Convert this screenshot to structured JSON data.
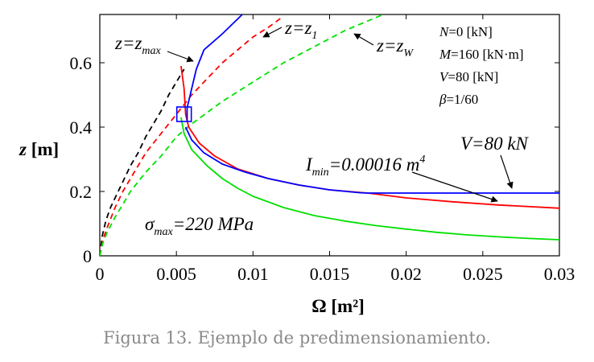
{
  "caption": "Figura 13. Ejemplo de predimensionamiento.",
  "chart_data": {
    "type": "line",
    "title": "",
    "xlabel": "Ω [m²]",
    "ylabel": "z [m]",
    "xlim": [
      0,
      0.03
    ],
    "ylim": [
      0,
      0.75
    ],
    "x_ticks": [
      0,
      0.005,
      0.01,
      0.015,
      0.02,
      0.025,
      0.03
    ],
    "x_tick_labels": [
      "0",
      "0.005",
      "0.01",
      "0.015",
      "0.02",
      "0.025",
      "0.03"
    ],
    "y_ticks": [
      0,
      0.2,
      0.4,
      0.6
    ],
    "y_tick_labels": [
      "0",
      "0.2",
      "0.4",
      "0.6"
    ],
    "grid": false,
    "series": [
      {
        "name": "z=zmax",
        "color": "#000000",
        "dash": true,
        "points": [
          [
            0.0,
            0.0
          ],
          [
            0.00015,
            0.06
          ],
          [
            0.0004,
            0.11
          ],
          [
            0.0007,
            0.15
          ],
          [
            0.001,
            0.18
          ],
          [
            0.0015,
            0.23
          ],
          [
            0.002,
            0.28
          ],
          [
            0.0025,
            0.32
          ],
          [
            0.003,
            0.37
          ],
          [
            0.0035,
            0.41
          ],
          [
            0.004,
            0.45
          ],
          [
            0.0045,
            0.5
          ],
          [
            0.005,
            0.54
          ],
          [
            0.0055,
            0.58
          ]
        ]
      },
      {
        "name": "z=z1",
        "color": "#ff0000",
        "dash": true,
        "points": [
          [
            0.0,
            0.0
          ],
          [
            0.0002,
            0.05
          ],
          [
            0.0005,
            0.09
          ],
          [
            0.001,
            0.15
          ],
          [
            0.0015,
            0.2
          ],
          [
            0.002,
            0.24
          ],
          [
            0.003,
            0.32
          ],
          [
            0.004,
            0.38
          ],
          [
            0.005,
            0.44
          ],
          [
            0.006,
            0.5
          ],
          [
            0.007,
            0.55
          ],
          [
            0.008,
            0.6
          ],
          [
            0.009,
            0.64
          ],
          [
            0.01,
            0.68
          ],
          [
            0.011,
            0.71
          ],
          [
            0.012,
            0.745
          ]
        ]
      },
      {
        "name": "z=zW",
        "color": "#00e000",
        "dash": true,
        "points": [
          [
            0.0,
            0.0
          ],
          [
            0.0002,
            0.04
          ],
          [
            0.0005,
            0.075
          ],
          [
            0.001,
            0.12
          ],
          [
            0.0015,
            0.16
          ],
          [
            0.002,
            0.2
          ],
          [
            0.003,
            0.26
          ],
          [
            0.004,
            0.31
          ],
          [
            0.005,
            0.37
          ],
          [
            0.006,
            0.41
          ],
          [
            0.008,
            0.48
          ],
          [
            0.01,
            0.54
          ],
          [
            0.012,
            0.6
          ],
          [
            0.014,
            0.65
          ],
          [
            0.016,
            0.7
          ],
          [
            0.0185,
            0.75
          ]
        ]
      },
      {
        "name": "σmax=220 MPa",
        "color": "#00e000",
        "dash": false,
        "points": [
          [
            0.0053,
            0.43
          ],
          [
            0.0055,
            0.38
          ],
          [
            0.006,
            0.33
          ],
          [
            0.007,
            0.28
          ],
          [
            0.008,
            0.24
          ],
          [
            0.009,
            0.21
          ],
          [
            0.01,
            0.185
          ],
          [
            0.012,
            0.15
          ],
          [
            0.014,
            0.125
          ],
          [
            0.016,
            0.108
          ],
          [
            0.018,
            0.094
          ],
          [
            0.02,
            0.083
          ],
          [
            0.022,
            0.073
          ],
          [
            0.024,
            0.065
          ],
          [
            0.026,
            0.059
          ],
          [
            0.028,
            0.054
          ],
          [
            0.03,
            0.05
          ]
        ]
      },
      {
        "name": "Imin=0.00016 m4",
        "color": "#ff0000",
        "dash": false,
        "points": [
          [
            0.0053,
            0.59
          ],
          [
            0.0055,
            0.52
          ],
          [
            0.0056,
            0.44
          ],
          [
            0.0058,
            0.4
          ],
          [
            0.0065,
            0.35
          ],
          [
            0.0075,
            0.31
          ],
          [
            0.009,
            0.27
          ],
          [
            0.011,
            0.24
          ],
          [
            0.013,
            0.22
          ],
          [
            0.015,
            0.205
          ],
          [
            0.0175,
            0.195
          ],
          [
            0.02,
            0.18
          ],
          [
            0.023,
            0.168
          ],
          [
            0.026,
            0.158
          ],
          [
            0.03,
            0.148
          ]
        ]
      },
      {
        "name": "V=80 kN",
        "color": "#0000ff",
        "dash": false,
        "points": [
          [
            0.0057,
            0.42
          ],
          [
            0.0057,
            0.46
          ],
          [
            0.006,
            0.52
          ],
          [
            0.0063,
            0.58
          ],
          [
            0.0068,
            0.64
          ],
          [
            0.008,
            0.69
          ],
          [
            0.0093,
            0.75
          ],
          [
            0.0056,
            0.4
          ],
          [
            0.006,
            0.36
          ],
          [
            0.0068,
            0.32
          ],
          [
            0.008,
            0.285
          ],
          [
            0.0095,
            0.26
          ],
          [
            0.011,
            0.24
          ],
          [
            0.013,
            0.22
          ],
          [
            0.015,
            0.205
          ],
          [
            0.017,
            0.196
          ],
          [
            0.0175,
            0.195
          ],
          [
            0.03,
            0.195
          ]
        ]
      }
    ],
    "marker": {
      "shape": "square",
      "color": "#0000ff",
      "x": 0.0055,
      "y": 0.44
    },
    "annotations": {
      "zmax": {
        "main": "z=z",
        "sub": "max"
      },
      "z1": {
        "main": "z=z",
        "sub": "1"
      },
      "zw": {
        "main": "z=z",
        "sub": "W"
      },
      "imin": {
        "pre": "I",
        "sub": "min",
        "post": "=0.00016 m",
        "sup": "4"
      },
      "v80": "V=80 kN",
      "sigma": {
        "pre": "σ",
        "sub": "max",
        "post": "=220 MPa"
      }
    },
    "parameters": {
      "N": {
        "var": "N",
        "rest": "=0 [kN]"
      },
      "M": {
        "var": "M",
        "rest": "=160 [kN·m]"
      },
      "V": {
        "var": "V",
        "rest": "=80 [kN]"
      },
      "beta": {
        "var": "β",
        "rest": "=1/60"
      }
    }
  }
}
